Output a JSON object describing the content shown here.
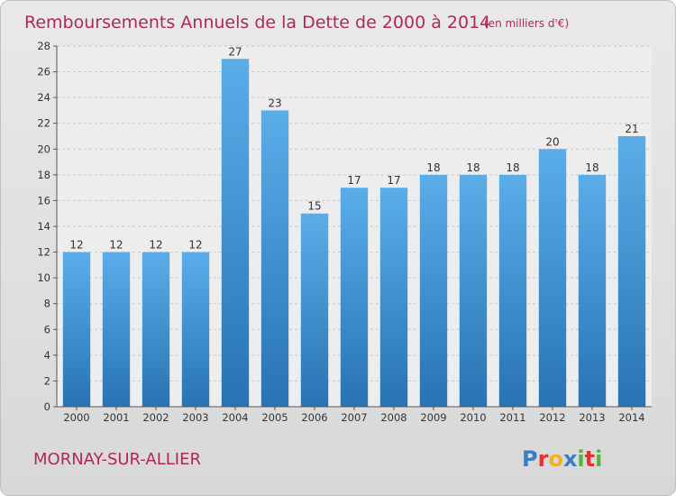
{
  "chart_data": {
    "type": "bar",
    "title": "Remboursements Annuels de la Dette de 2000 à 2014",
    "unit_note": "(en milliers d'€)",
    "categories": [
      "2000",
      "2001",
      "2002",
      "2003",
      "2004",
      "2005",
      "2006",
      "2007",
      "2008",
      "2009",
      "2010",
      "2011",
      "2012",
      "2013",
      "2014"
    ],
    "values": [
      12,
      12,
      12,
      12,
      27,
      23,
      15,
      17,
      17,
      18,
      18,
      18,
      20,
      18,
      21
    ],
    "xlabel": "",
    "ylabel": "",
    "ylim": [
      0,
      28
    ],
    "yticks": [
      0,
      2,
      4,
      6,
      8,
      10,
      12,
      14,
      16,
      18,
      20,
      22,
      24,
      26,
      28
    ],
    "grid": true,
    "colors": {
      "bar_light": "#5aaee8",
      "bar_dark": "#2873b3",
      "title": "#b0285a"
    }
  },
  "footer": {
    "commune": "MORNAY-SUR-ALLIER",
    "logo_letters": [
      {
        "ch": "P",
        "color": "#3a7fc4"
      },
      {
        "ch": "r",
        "color": "#e2342b"
      },
      {
        "ch": "o",
        "color": "#f2b01e"
      },
      {
        "ch": "x",
        "color": "#3a7fc4"
      },
      {
        "ch": "i",
        "color": "#58b047"
      },
      {
        "ch": "t",
        "color": "#e2342b"
      },
      {
        "ch": "i",
        "color": "#58b047"
      }
    ]
  }
}
